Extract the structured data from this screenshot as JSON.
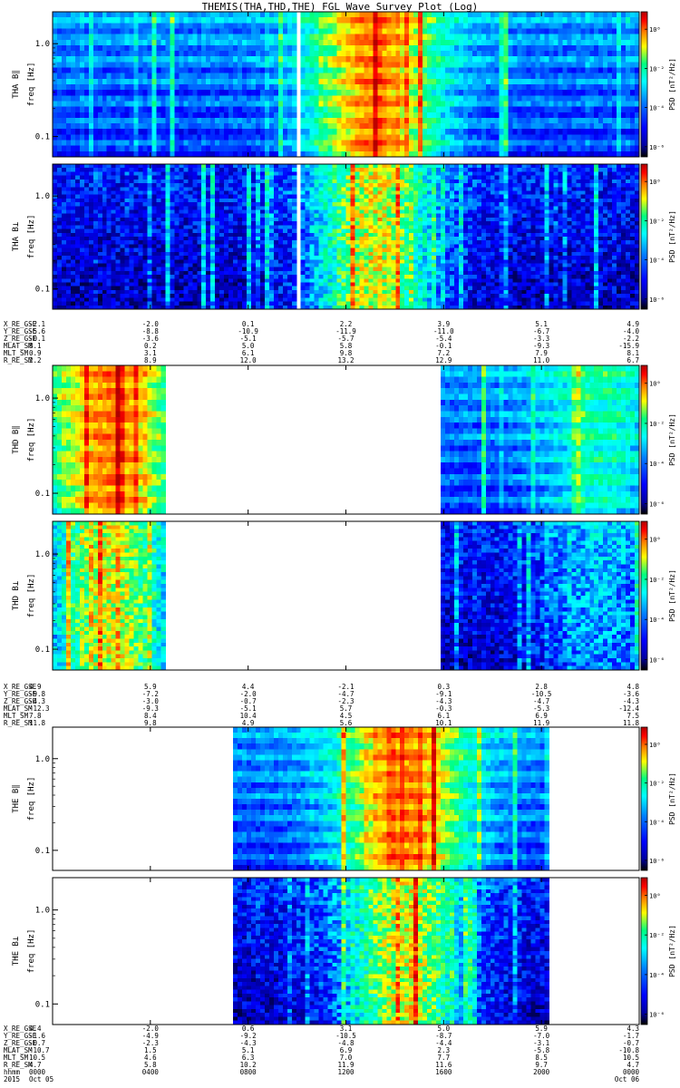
{
  "title": "THEMIS(THA,THD,THE) FGL Wave Survey Plot (Log)",
  "colors": {
    "gradient": [
      "#000000",
      "#0000a0",
      "#0000ff",
      "#0080ff",
      "#00ffff",
      "#00ff80",
      "#ffff00",
      "#ff8000",
      "#ff0000",
      "#b00000"
    ]
  },
  "chart_data": {
    "type": "heatmap",
    "panel_ylabel": "freq [Hz]",
    "y_scale": "log",
    "y_ticks": [
      "0.1",
      "1.0"
    ],
    "colorbar_label": "PSD [nT²/Hz]",
    "colorbar_ticks": [
      "10⁰",
      "10⁻²",
      "10⁻⁴",
      "10⁻⁶"
    ],
    "panels": [
      {
        "label": "THA B∥",
        "probe": "THA",
        "coverage": [
          [
            0,
            0.415
          ],
          [
            0.425,
            1
          ]
        ],
        "mode": "par"
      },
      {
        "label": "THA B⊥",
        "probe": "THA",
        "coverage": [
          [
            0,
            0.415
          ],
          [
            0.425,
            1
          ]
        ],
        "mode": "perp"
      },
      {
        "label": "THD B∥",
        "probe": "THD",
        "coverage": [
          [
            0,
            0.19
          ],
          [
            0.66,
            1
          ]
        ],
        "mode": "par"
      },
      {
        "label": "THD B⊥",
        "probe": "THD",
        "coverage": [
          [
            0,
            0.19
          ],
          [
            0.66,
            1
          ]
        ],
        "mode": "perp"
      },
      {
        "label": "THE B∥",
        "probe": "THE",
        "coverage": [
          [
            0.31,
            0.85
          ]
        ],
        "mode": "par"
      },
      {
        "label": "THE B⊥",
        "probe": "THE",
        "coverage": [
          [
            0.31,
            0.85
          ]
        ],
        "mode": "perp"
      }
    ],
    "ephemeris": [
      {
        "probe": "THA",
        "rows": [
          {
            "name": "X_RE_GSE",
            "values": [
              "-2.1",
              "-2.0",
              "0.1",
              "2.2",
              "3.9",
              "5.1",
              "4.9"
            ]
          },
          {
            "name": "Y_RE_GSE",
            "values": [
              "-5.6",
              "-8.8",
              "-10.9",
              "-11.9",
              "-11.0",
              "-6.7",
              "-4.0"
            ]
          },
          {
            "name": "Z_RE_GSE",
            "values": [
              "-0.1",
              "-3.6",
              "-5.1",
              "-5.7",
              "-5.4",
              "-3.3",
              "-2.2"
            ]
          },
          {
            "name": "MLAT_SM",
            "values": [
              "8.1",
              "0.2",
              "5.0",
              "5.8",
              "-0.1",
              "-9.3",
              "-15.9"
            ]
          },
          {
            "name": "MLT_SM",
            "values": [
              "0.9",
              "3.1",
              "6.1",
              "9.8",
              "7.2",
              "7.9",
              "8.1"
            ]
          },
          {
            "name": "R_RE_SM",
            "values": [
              "2.2",
              "8.9",
              "12.0",
              "13.2",
              "12.9",
              "11.0",
              "6.7"
            ]
          }
        ]
      },
      {
        "probe": "THD",
        "rows": [
          {
            "name": "X_RE_GSE",
            "values": [
              "4.9",
              "5.9",
              "4.4",
              "-2.1",
              "0.3",
              "2.8",
              "4.8"
            ]
          },
          {
            "name": "Y_RE_GSE",
            "values": [
              "-9.8",
              "-7.2",
              "-2.0",
              "-4.7",
              "-9.1",
              "-10.5",
              "-3.6"
            ]
          },
          {
            "name": "Z_RE_GSE",
            "values": [
              "-4.3",
              "-3.0",
              "-0.7",
              "-2.3",
              "-4.3",
              "-4.7",
              "-4.3"
            ]
          },
          {
            "name": "MLAT_SM",
            "values": [
              "-12.3",
              "-9.3",
              "-5.1",
              "5.7",
              "-0.3",
              "-5.3",
              "-12.4"
            ]
          },
          {
            "name": "MLT_SM",
            "values": [
              "7.8",
              "8.4",
              "10.4",
              "4.5",
              "6.1",
              "6.9",
              "7.5"
            ]
          },
          {
            "name": "R_RE_SM",
            "values": [
              "11.8",
              "9.8",
              "4.9",
              "5.6",
              "10.1",
              "11.9",
              "11.8"
            ]
          }
        ]
      },
      {
        "probe": "THE",
        "rows": [
          {
            "name": "X_RE_GSE",
            "values": [
              "4.4",
              "-2.0",
              "0.6",
              "3.1",
              "5.0",
              "5.9",
              "4.3"
            ]
          },
          {
            "name": "Y_RE_GSE",
            "values": [
              "-1.6",
              "-4.9",
              "-9.2",
              "-10.5",
              "-8.7",
              "-7.0",
              "-1.7"
            ]
          },
          {
            "name": "Z_RE_GSE",
            "values": [
              "-0.7",
              "-2.3",
              "-4.3",
              "-4.8",
              "-4.4",
              "-3.1",
              "-0.7"
            ]
          },
          {
            "name": "MLAT_SM",
            "values": [
              "-10.7",
              "1.5",
              "5.1",
              "6.9",
              "2.3",
              "-5.8",
              "-10.8"
            ]
          },
          {
            "name": "MLT_SM",
            "values": [
              "10.5",
              "4.6",
              "6.3",
              "7.0",
              "7.7",
              "8.5",
              "10.5"
            ]
          },
          {
            "name": "R_RE_SM",
            "values": [
              "4.7",
              "5.8",
              "10.2",
              "11.9",
              "11.6",
              "9.7",
              "4.7"
            ]
          },
          {
            "name": "hhmm",
            "values": [
              "0000",
              "0400",
              "0800",
              "1200",
              "1600",
              "2000",
              "0000"
            ]
          },
          {
            "name": "2015",
            "values": [
              "Oct 05",
              "",
              "",
              "",
              "",
              "",
              "Oct 06"
            ]
          }
        ]
      }
    ]
  }
}
